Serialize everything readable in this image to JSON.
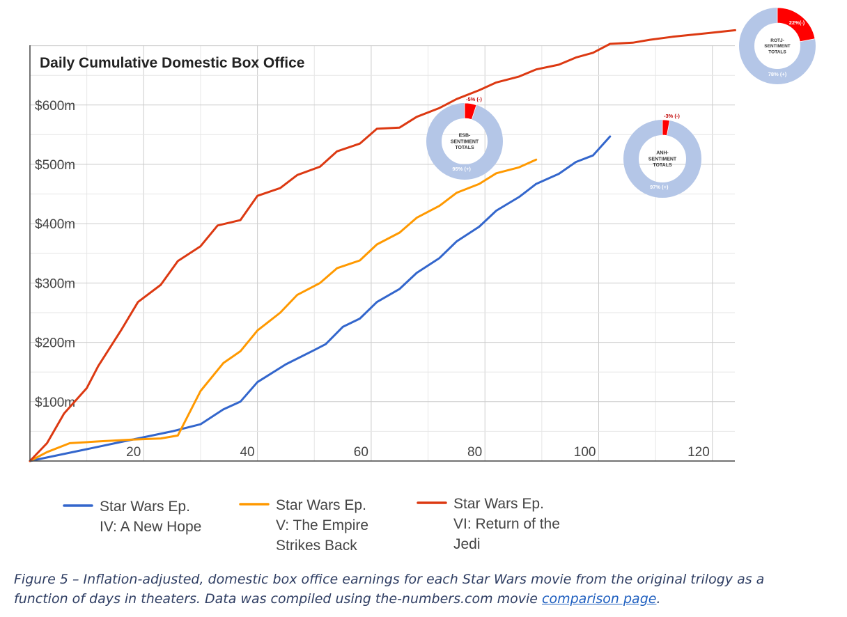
{
  "chart_data": {
    "type": "line",
    "title": "Daily Cumulative Domestic Box Office",
    "xlabel": "",
    "ylabel": "",
    "xlim": [
      0,
      124
    ],
    "ylim": [
      0,
      700
    ],
    "x_ticks": [
      {
        "value": 20,
        "label": "20"
      },
      {
        "value": 40,
        "label": "40"
      },
      {
        "value": 60,
        "label": "60"
      },
      {
        "value": 80,
        "label": "80"
      },
      {
        "value": 100,
        "label": "100"
      },
      {
        "value": 120,
        "label": "120"
      }
    ],
    "y_ticks": [
      {
        "value": 100,
        "label": "$100m"
      },
      {
        "value": 200,
        "label": "$200m"
      },
      {
        "value": 300,
        "label": "$300m"
      },
      {
        "value": 400,
        "label": "$400m"
      },
      {
        "value": 500,
        "label": "$500m"
      },
      {
        "value": 600,
        "label": "$600m"
      }
    ],
    "grid": true,
    "legend_position": "bottom",
    "series": [
      {
        "name": "Star Wars Ep. IV: A New Hope",
        "legend_lines": [
          "Star Wars Ep.",
          "IV: A New Hope"
        ],
        "color": "#3366cc",
        "points": [
          [
            0,
            0
          ],
          [
            5,
            10
          ],
          [
            10,
            20
          ],
          [
            15,
            30
          ],
          [
            20,
            40
          ],
          [
            25,
            50
          ],
          [
            30,
            62
          ],
          [
            34,
            87
          ],
          [
            37,
            100
          ],
          [
            40,
            133
          ],
          [
            45,
            163
          ],
          [
            50,
            187
          ],
          [
            52,
            197
          ],
          [
            55,
            226
          ],
          [
            58,
            240
          ],
          [
            61,
            268
          ],
          [
            65,
            290
          ],
          [
            68,
            317
          ],
          [
            72,
            342
          ],
          [
            75,
            370
          ],
          [
            79,
            395
          ],
          [
            82,
            422
          ],
          [
            86,
            445
          ],
          [
            89,
            467
          ],
          [
            93,
            484
          ],
          [
            96,
            504
          ],
          [
            99,
            515
          ],
          [
            102,
            547
          ]
        ]
      },
      {
        "name": "Star Wars Ep. V: The Empire Strikes Back",
        "legend_lines": [
          "Star Wars Ep.",
          "V: The Empire",
          "Strikes Back"
        ],
        "color": "#ff9900",
        "points": [
          [
            0,
            0
          ],
          [
            3,
            15
          ],
          [
            7,
            30
          ],
          [
            12,
            33
          ],
          [
            18,
            36
          ],
          [
            23,
            38
          ],
          [
            26,
            43
          ],
          [
            30,
            118
          ],
          [
            34,
            165
          ],
          [
            37,
            185
          ],
          [
            40,
            220
          ],
          [
            44,
            250
          ],
          [
            47,
            280
          ],
          [
            51,
            300
          ],
          [
            54,
            325
          ],
          [
            58,
            338
          ],
          [
            61,
            365
          ],
          [
            65,
            385
          ],
          [
            68,
            410
          ],
          [
            72,
            430
          ],
          [
            75,
            452
          ],
          [
            79,
            467
          ],
          [
            82,
            485
          ],
          [
            86,
            495
          ],
          [
            89,
            508
          ]
        ]
      },
      {
        "name": "Star Wars Ep. VI: Return of the Jedi",
        "legend_lines": [
          "Star Wars Ep.",
          "VI: Return of the",
          "Jedi"
        ],
        "color": "#dc3912",
        "points": [
          [
            0,
            0
          ],
          [
            3,
            30
          ],
          [
            6,
            80
          ],
          [
            10,
            123
          ],
          [
            12,
            160
          ],
          [
            16,
            220
          ],
          [
            19,
            268
          ],
          [
            23,
            297
          ],
          [
            26,
            337
          ],
          [
            30,
            362
          ],
          [
            33,
            397
          ],
          [
            37,
            406
          ],
          [
            40,
            447
          ],
          [
            44,
            460
          ],
          [
            47,
            482
          ],
          [
            51,
            496
          ],
          [
            54,
            522
          ],
          [
            58,
            535
          ],
          [
            61,
            560
          ],
          [
            65,
            562
          ],
          [
            68,
            580
          ],
          [
            72,
            595
          ],
          [
            75,
            610
          ],
          [
            79,
            625
          ],
          [
            82,
            638
          ],
          [
            86,
            648
          ],
          [
            89,
            660
          ],
          [
            93,
            668
          ],
          [
            96,
            680
          ],
          [
            99,
            688
          ],
          [
            102,
            703
          ],
          [
            106,
            705
          ],
          [
            109,
            710
          ],
          [
            113,
            715
          ],
          [
            116,
            718
          ],
          [
            120,
            722
          ],
          [
            124,
            726
          ]
        ]
      }
    ],
    "insets": [
      {
        "id": "esb",
        "type": "pie",
        "label_lines": [
          "ESB-",
          "SENTIMENT",
          "TOTALS"
        ],
        "neg_label": "-5% (-)",
        "pos_label": "95% (+)",
        "neg": 5,
        "pos": 95
      },
      {
        "id": "anh",
        "type": "pie",
        "label_lines": [
          "ANH-",
          "SENTIMENT",
          "TOTALS"
        ],
        "neg_label": "-3% (-)",
        "pos_label": "97% (+)",
        "neg": 3,
        "pos": 97
      },
      {
        "id": "rotj",
        "type": "pie",
        "label_lines": [
          "ROTJ-",
          "SENTIMENT",
          "TOTALS"
        ],
        "neg_label": "22%(-)",
        "pos_label": "78% (+)",
        "neg": 22,
        "pos": 78
      }
    ],
    "inset_colors": {
      "positive": "#b4c6e7",
      "negative": "#ff0000"
    }
  },
  "caption": {
    "text": "Figure 5 – Inflation-adjusted, domestic box office earnings for each Star Wars movie from the original trilogy as a function of days in theaters. Data was compiled using the-numbers.com movie ",
    "link_text": "comparison page",
    "end": "."
  }
}
